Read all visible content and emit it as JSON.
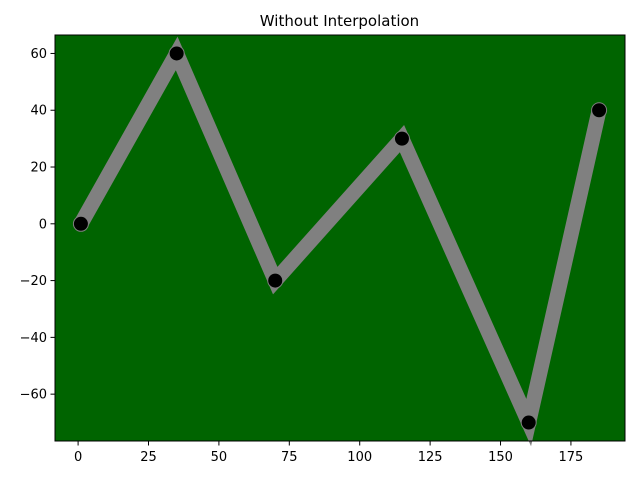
{
  "chart_data": {
    "type": "line",
    "title": "Without Interpolation",
    "xlabel": "",
    "ylabel": "",
    "x": [
      1,
      35,
      70,
      115,
      160,
      185
    ],
    "series": [
      {
        "values": [
          0,
          60,
          -20,
          30,
          -70,
          40
        ]
      }
    ],
    "xlim": [
      -8.2,
      194.2
    ],
    "ylim": [
      -76.5,
      66.5
    ],
    "xticks": [
      0,
      25,
      50,
      75,
      100,
      125,
      150,
      175
    ],
    "yticks": [
      -60,
      -40,
      -20,
      0,
      20,
      40,
      60
    ],
    "xtick_labels": [
      "0",
      "25",
      "50",
      "75",
      "100",
      "125",
      "150",
      "175"
    ],
    "ytick_labels": [
      "−60",
      "−40",
      "−20",
      "0",
      "20",
      "40",
      "60"
    ],
    "grid": false,
    "colors": {
      "plot_background": "#006400",
      "line": "#808080",
      "marker_fill": "#000000",
      "marker_edge": "#808080"
    }
  }
}
